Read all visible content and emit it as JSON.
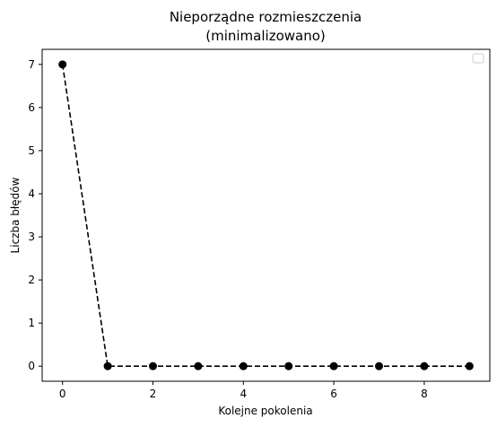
{
  "chart_data": {
    "type": "line",
    "title_line1": "Nieporządne rozmieszczenia",
    "title_line2": "(minimalizowano)",
    "xlabel": "Kolejne pokolenia",
    "ylabel": "Liczba błędów",
    "x": [
      0,
      1,
      2,
      3,
      4,
      5,
      6,
      7,
      8,
      9
    ],
    "series": [
      {
        "values": [
          7,
          0,
          0,
          0,
          0,
          0,
          0,
          0,
          0,
          0
        ],
        "color": "#000000",
        "line_style": "dashed",
        "marker": "circle"
      }
    ],
    "xlim": [
      -0.45,
      9.45
    ],
    "ylim": [
      -0.35,
      7.35
    ],
    "xticks": [
      0,
      2,
      4,
      6,
      8
    ],
    "yticks": [
      0,
      1,
      2,
      3,
      4,
      5,
      6,
      7
    ],
    "grid": false,
    "legend": {
      "position": "top-right",
      "entries": []
    }
  }
}
